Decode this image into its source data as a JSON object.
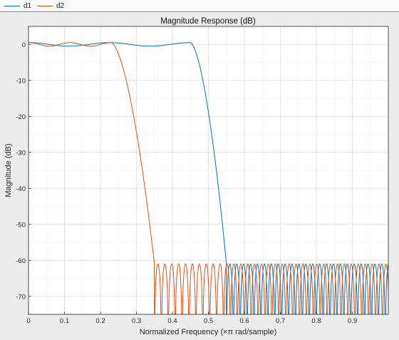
{
  "legend": {
    "items": [
      {
        "label": "d1",
        "color": "#0072BD"
      },
      {
        "label": "d2",
        "color": "#D95319"
      }
    ]
  },
  "chart_data": {
    "type": "line",
    "title": "Magnitude Response (dB)",
    "xlabel": "Normalized Frequency (×π rad/sample)",
    "ylabel": "Magnitude (dB)",
    "xlim": [
      0,
      1
    ],
    "ylim": [
      -75,
      5
    ],
    "xticks": [
      0,
      0.1,
      0.2,
      0.3,
      0.4,
      0.5,
      0.6,
      0.7,
      0.8,
      0.9
    ],
    "xtick_labels": [
      "0",
      "0.1",
      "0.2",
      "0.3",
      "0.4",
      "0.5",
      "0.6",
      "0.7",
      "0.8",
      "0.9"
    ],
    "yticks": [
      0,
      -10,
      -20,
      -30,
      -40,
      -50,
      -60,
      -70
    ],
    "ytick_labels": [
      "0",
      "-10",
      "-20",
      "-30",
      "-40",
      "-50",
      "-60",
      "-70"
    ],
    "grid": true,
    "legend_position": "top-left",
    "series": [
      {
        "name": "d1",
        "color": "#0072BD",
        "passband_edge": 0.45,
        "stopband_edge": 0.55,
        "passband_ripple_db": 0.5,
        "stopband_attenuation_db": 61
      },
      {
        "name": "d2",
        "color": "#D95319",
        "passband_edge": 0.23,
        "stopband_edge": 0.35,
        "passband_ripple_db": 0.5,
        "stopband_attenuation_db": 61
      }
    ]
  }
}
